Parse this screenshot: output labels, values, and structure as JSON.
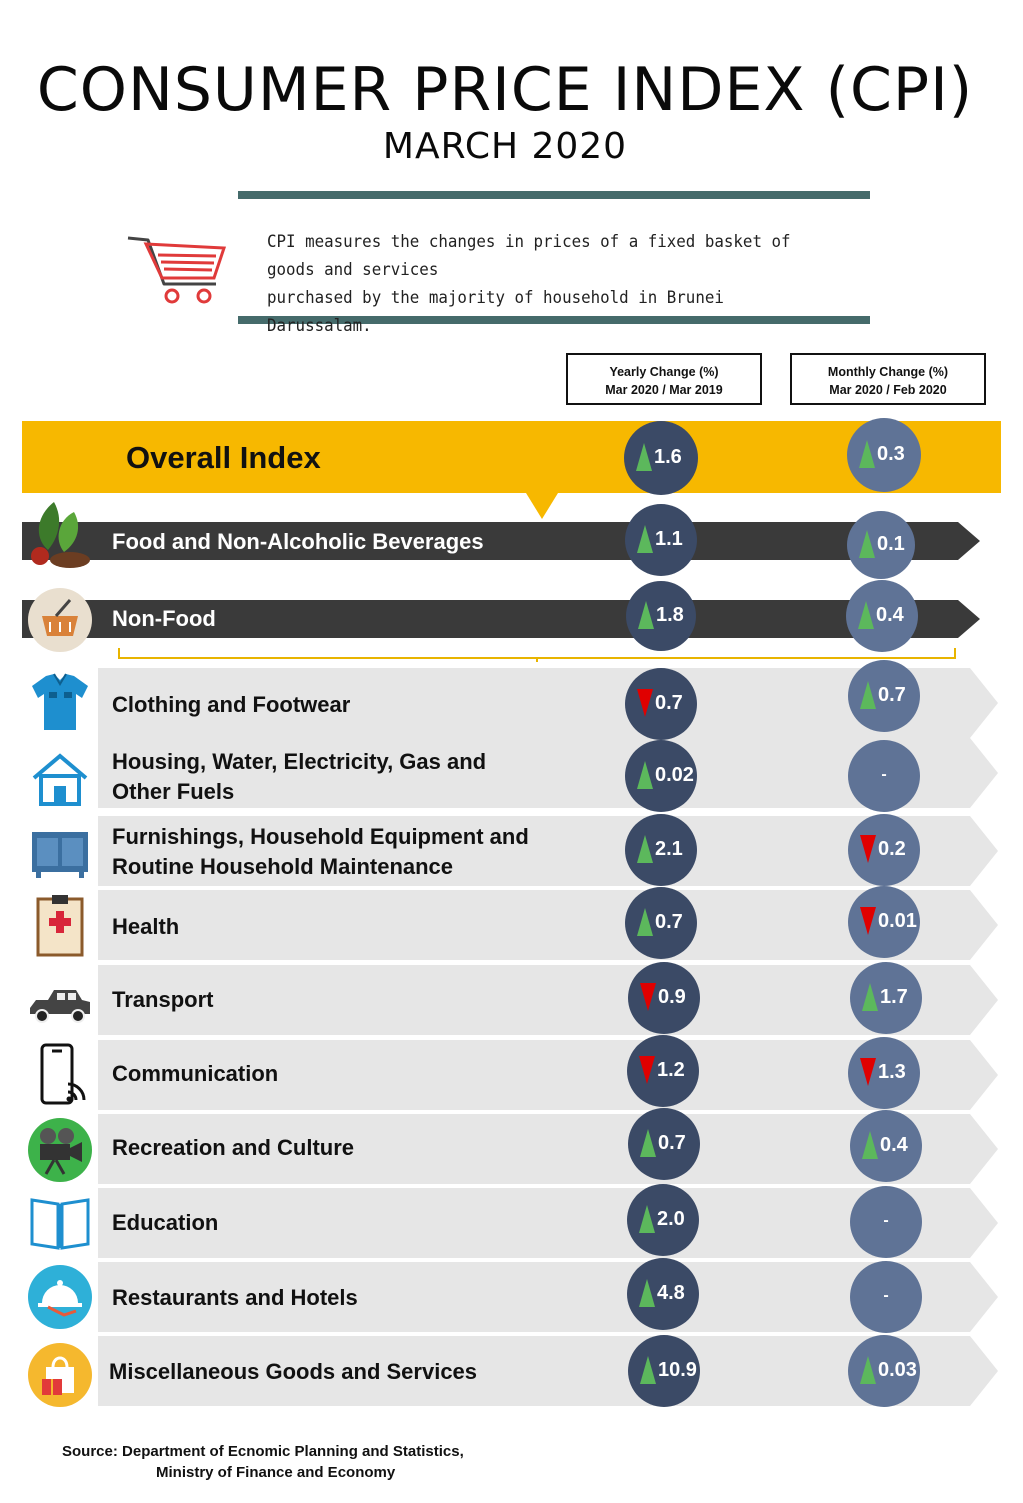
{
  "title": "CONSUMER PRICE INDEX (CPI)",
  "subtitle": "MARCH 2020",
  "description_lines": [
    "CPI measures the changes in prices of a fixed basket of goods and services",
    "purchased by the majority of household in Brunei Darussalam."
  ],
  "columns": {
    "yearly": [
      "Yearly Change (%)",
      "Mar 2020 / Mar 2019"
    ],
    "monthly": [
      "Monthly Change (%)",
      "Mar 2020 / Feb 2020"
    ]
  },
  "colors": {
    "overall_band": "#f7b800",
    "group_bar": "#3a3a3a",
    "row_band": "#e6e6e6",
    "yearly_circle": "#3b4a66",
    "monthly_circle": "#5f7396",
    "arrow_up": "#5cb85c",
    "arrow_down": "#e00000",
    "rule": "#456b6b"
  },
  "chart_data": {
    "type": "table",
    "series": [
      {
        "name": "Yearly Change (%) Mar 2020 / Mar 2019"
      },
      {
        "name": "Monthly Change (%) Mar 2020 / Feb 2020"
      }
    ],
    "overall": {
      "label": "Overall Index",
      "yearly": "1.6",
      "yearly_dir": "up",
      "monthly": "0.3",
      "monthly_dir": "up"
    },
    "groups": [
      {
        "label": "Food and Non-Alcoholic Beverages",
        "icon": "food-icon",
        "yearly": "1.1",
        "yearly_dir": "up",
        "monthly": "0.1",
        "monthly_dir": "up"
      },
      {
        "label": "Non-Food",
        "icon": "basket-icon",
        "yearly": "1.8",
        "yearly_dir": "up",
        "monthly": "0.4",
        "monthly_dir": "up"
      }
    ],
    "rows": [
      {
        "lines": [
          "Clothing and Footwear"
        ],
        "icon": "shirt-icon",
        "yearly": "0.7",
        "yearly_dir": "down",
        "monthly": "0.7",
        "monthly_dir": "up"
      },
      {
        "lines": [
          "Housing, Water, Electricity, Gas and",
          "Other Fuels"
        ],
        "icon": "house-icon",
        "yearly": "0.02",
        "yearly_dir": "up",
        "monthly": "-",
        "monthly_dir": "none"
      },
      {
        "lines": [
          "Furnishings, Household Equipment and",
          "Routine Household Maintenance"
        ],
        "icon": "cabinet-icon",
        "yearly": "2.1",
        "yearly_dir": "up",
        "monthly": "0.2",
        "monthly_dir": "down"
      },
      {
        "lines": [
          "Health"
        ],
        "icon": "medical-clipboard-icon",
        "yearly": "0.7",
        "yearly_dir": "up",
        "monthly": "0.01",
        "monthly_dir": "down"
      },
      {
        "lines": [
          "Transport"
        ],
        "icon": "car-icon",
        "yearly": "0.9",
        "yearly_dir": "down",
        "monthly": "1.7",
        "monthly_dir": "up"
      },
      {
        "lines": [
          "Communication"
        ],
        "icon": "smartphone-icon",
        "yearly": "1.2",
        "yearly_dir": "down",
        "monthly": "1.3",
        "monthly_dir": "down"
      },
      {
        "lines": [
          "Recreation and Culture"
        ],
        "icon": "movie-camera-icon",
        "yearly": "0.7",
        "yearly_dir": "up",
        "monthly": "0.4",
        "monthly_dir": "up"
      },
      {
        "lines": [
          "Education"
        ],
        "icon": "book-icon",
        "yearly": "2.0",
        "yearly_dir": "up",
        "monthly": "-",
        "monthly_dir": "none"
      },
      {
        "lines": [
          "Restaurants and Hotels"
        ],
        "icon": "serving-cloche-icon",
        "yearly": "4.8",
        "yearly_dir": "up",
        "monthly": "-",
        "monthly_dir": "none"
      },
      {
        "lines": [
          "Miscellaneous Goods and Services"
        ],
        "icon": "shopping-bag-icon",
        "yearly": "10.9",
        "yearly_dir": "up",
        "monthly": "0.03",
        "monthly_dir": "up"
      }
    ]
  },
  "source_lines": [
    "Source: Department of Ecnomic Planning and Statistics,",
    "Ministry of Finance and Economy"
  ]
}
